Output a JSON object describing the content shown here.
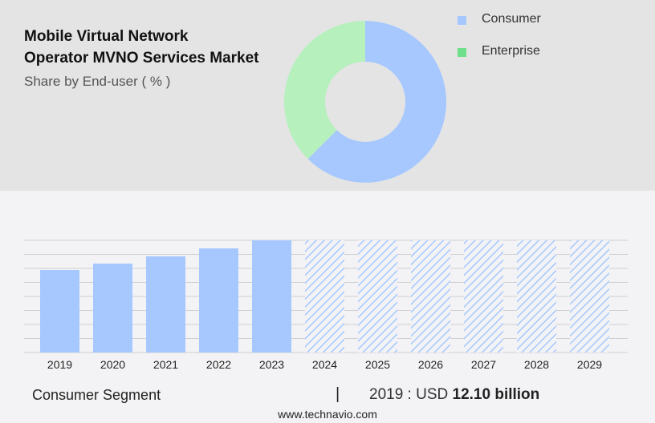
{
  "header": {
    "title_line1": "Mobile Virtual Network",
    "title_line2": "Operator MVNO Services Market",
    "subtitle": "Share by End-user ( % )"
  },
  "chart_data": [
    {
      "type": "pie",
      "style": "donut",
      "slices": [
        {
          "name": "Consumer",
          "value": 62.5,
          "color": "#a6c8ff"
        },
        {
          "name": "Enterprise",
          "value": 37.5,
          "color": "#b5f0bd"
        }
      ],
      "legend": [
        {
          "label": "Consumer",
          "color": "#a6c8ff"
        },
        {
          "label": "Enterprise",
          "color": "#6ee08a"
        }
      ],
      "legend_placement": "right"
    },
    {
      "type": "bar",
      "categories": [
        "2019",
        "2020",
        "2021",
        "2022",
        "2023",
        "2024",
        "2025",
        "2026",
        "2027",
        "2028",
        "2029"
      ],
      "values": [
        12.1,
        13.04,
        14.1,
        15.27,
        16.45,
        null,
        null,
        null,
        null,
        null,
        null
      ],
      "forecast_from": "2024",
      "forecast_style": "hatched",
      "bar_color": "#a6c8ff",
      "grid": true,
      "ylim": [
        0,
        16.45
      ]
    }
  ],
  "footer": {
    "segment": "Consumer Segment",
    "separator": "|",
    "year_label": "2019 : USD",
    "value": "12.10 billion",
    "site": "www.technavio.com"
  }
}
